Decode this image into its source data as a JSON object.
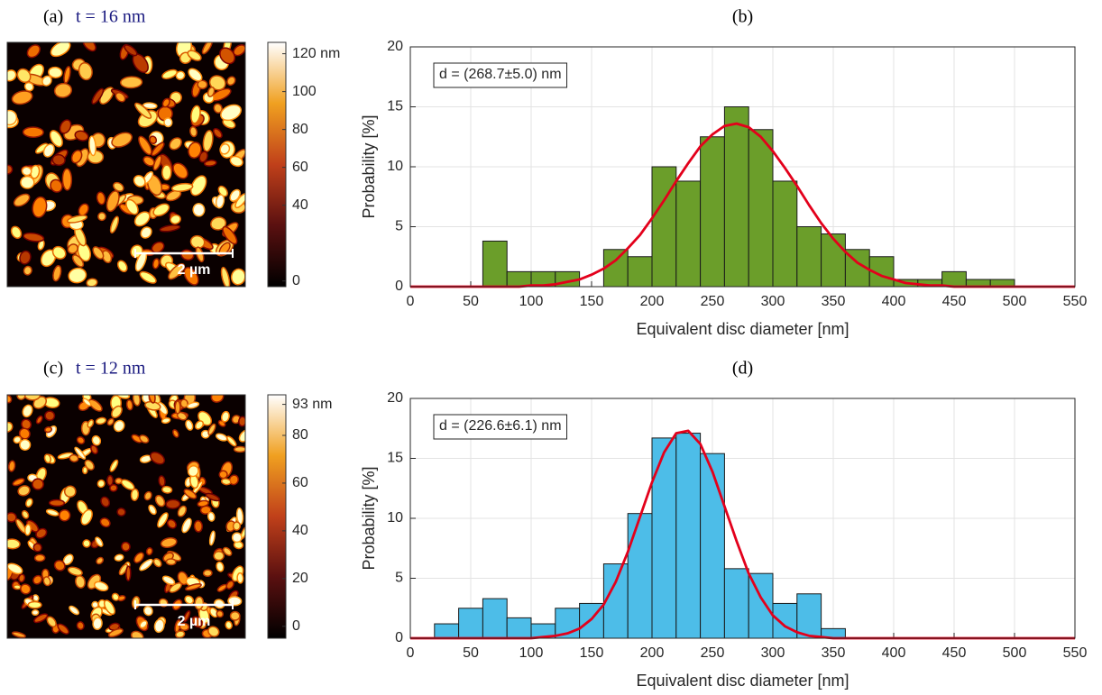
{
  "chart_data": [
    {
      "type": "image",
      "label": "(a)",
      "title": "t = 16 nm",
      "scalebar": "2 µm",
      "clim": [
        -3,
        126
      ],
      "colorbar_ticks": [
        {
          "value": 120,
          "label": "120 nm"
        },
        100,
        80,
        60,
        40,
        0
      ]
    },
    {
      "type": "histogram",
      "title": "(b)",
      "xlabel": "Equivalent disc diameter [nm]",
      "ylabel": "Probability [%]",
      "annotation": "d = (268.7±5.0) nm",
      "xlim": [
        0,
        550
      ],
      "ylim": [
        0,
        20
      ],
      "xticks": [
        0,
        50,
        100,
        150,
        200,
        250,
        300,
        350,
        400,
        450,
        500,
        550
      ],
      "yticks": [
        0,
        5,
        10,
        15,
        20
      ],
      "grid": true,
      "bins": [
        60,
        80,
        100,
        120,
        140,
        160,
        180,
        200,
        220,
        240,
        260,
        280,
        300,
        320,
        340,
        360,
        380,
        400,
        420,
        440,
        460,
        480,
        500
      ],
      "values": [
        3.8,
        1.25,
        1.25,
        1.25,
        0,
        3.1,
        2.5,
        10.0,
        8.8,
        12.5,
        15.0,
        13.1,
        8.8,
        5.0,
        4.4,
        3.1,
        2.5,
        0.6,
        0.6,
        1.25,
        0.6,
        0.6
      ],
      "color": "#6b9e2a",
      "fit": {
        "color": "#e3001b",
        "x": [
          0,
          10,
          20,
          30,
          40,
          50,
          60,
          70,
          80,
          90,
          100,
          110,
          120,
          130,
          140,
          150,
          160,
          170,
          180,
          190,
          200,
          210,
          220,
          230,
          240,
          250,
          260,
          270,
          280,
          290,
          300,
          310,
          320,
          330,
          340,
          350,
          360,
          370,
          380,
          390,
          400,
          410,
          420,
          430,
          440,
          450,
          460,
          470,
          480,
          490,
          500,
          510,
          520,
          530,
          540,
          550
        ],
        "values": [
          0,
          0,
          0,
          0,
          0,
          0,
          0,
          0,
          0,
          0,
          0.1,
          0.1,
          0.2,
          0.4,
          0.6,
          1.0,
          1.5,
          2.2,
          3.2,
          4.3,
          5.7,
          7.2,
          8.8,
          10.3,
          11.7,
          12.7,
          13.4,
          13.6,
          13.3,
          12.5,
          11.3,
          9.9,
          8.4,
          6.8,
          5.3,
          4.0,
          2.9,
          2.0,
          1.4,
          0.9,
          0.6,
          0.3,
          0.2,
          0.1,
          0.1,
          0,
          0,
          0,
          0,
          0,
          0,
          0,
          0,
          0,
          0,
          0
        ]
      }
    },
    {
      "type": "image",
      "label": "(c)",
      "title": "t = 12 nm",
      "scalebar": "2 µm",
      "clim": [
        -5,
        97
      ],
      "colorbar_ticks": [
        {
          "value": 93,
          "label": "93 nm"
        },
        80,
        60,
        40,
        20,
        0
      ]
    },
    {
      "type": "histogram",
      "title": "(d)",
      "xlabel": "Equivalent disc diameter [nm]",
      "ylabel": "Probability [%]",
      "annotation": "d = (226.6±6.1) nm",
      "xlim": [
        0,
        550
      ],
      "ylim": [
        0,
        20
      ],
      "xticks": [
        0,
        50,
        100,
        150,
        200,
        250,
        300,
        350,
        400,
        450,
        500,
        550
      ],
      "yticks": [
        0,
        5,
        10,
        15,
        20
      ],
      "grid": true,
      "bins": [
        20,
        40,
        60,
        80,
        100,
        120,
        140,
        160,
        180,
        200,
        220,
        240,
        260,
        280,
        300,
        320,
        340,
        360
      ],
      "values": [
        1.2,
        2.5,
        3.3,
        1.7,
        1.2,
        2.5,
        2.9,
        6.2,
        10.4,
        16.7,
        17.1,
        15.4,
        5.8,
        5.4,
        2.9,
        3.7,
        0.8
      ],
      "color": "#4dbde8",
      "fit": {
        "color": "#e3001b",
        "x": [
          0,
          10,
          20,
          30,
          40,
          50,
          60,
          70,
          80,
          90,
          100,
          110,
          120,
          130,
          140,
          150,
          160,
          170,
          180,
          190,
          200,
          210,
          220,
          230,
          240,
          250,
          260,
          270,
          280,
          290,
          300,
          310,
          320,
          330,
          340,
          350,
          360,
          370,
          380,
          390,
          400,
          410,
          420,
          430,
          440,
          450,
          460,
          470,
          480,
          490,
          500,
          510,
          520,
          530,
          540,
          550
        ],
        "values": [
          0,
          0,
          0,
          0,
          0,
          0,
          0,
          0,
          0,
          0,
          0,
          0.1,
          0.2,
          0.4,
          0.8,
          1.6,
          2.8,
          4.7,
          7.2,
          10.1,
          13.0,
          15.5,
          17.1,
          17.3,
          16.2,
          13.9,
          11.0,
          8.1,
          5.4,
          3.4,
          1.9,
          1.0,
          0.5,
          0.2,
          0.1,
          0,
          0,
          0,
          0,
          0,
          0,
          0,
          0,
          0,
          0,
          0,
          0,
          0,
          0,
          0,
          0,
          0,
          0,
          0,
          0,
          0
        ]
      }
    }
  ]
}
